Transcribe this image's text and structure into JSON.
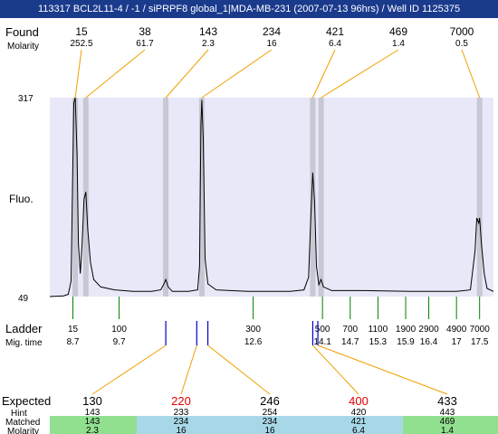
{
  "title": "113317  BCL2L11-4 / -1 / siPRPF8 global_1|MDA-MB-231 (2007-07-13 96hrs) / Well ID 1125375",
  "colors": {
    "title_bg": "#1a3a8c",
    "plot_bg": "#e8e8f8",
    "band": "#c8c8d4",
    "found_line": "#f0a000",
    "ladder_tick": "#008000",
    "expected_tick": "#0000cc",
    "miss_expected": "#dd0000",
    "matched_green": "#90e090",
    "matched_blue": "#a8d8e8"
  },
  "labels": {
    "found": "Found",
    "molarity": "Molarity",
    "fluo": "Fluo.",
    "ladder": "Ladder",
    "mig_time": "Mig. time",
    "expected": "Expected",
    "hint": "Hint",
    "matched": "Matched",
    "molarity2": "Molarity"
  },
  "chart_data": {
    "type": "line",
    "y_range": [
      49,
      317
    ],
    "y_ticks": [
      "317",
      "49"
    ],
    "x_range_migration_time": [
      8.2,
      17.8
    ],
    "found_peaks": [
      {
        "size": "15",
        "molarity": "252.5",
        "time": 8.75
      },
      {
        "size": "38",
        "molarity": "61.7",
        "time": 8.98
      },
      {
        "size": "143",
        "molarity": "2.3",
        "time": 10.71
      },
      {
        "size": "234",
        "molarity": "16",
        "time": 11.49
      },
      {
        "size": "421",
        "molarity": "6.4",
        "time": 13.89
      },
      {
        "size": "469",
        "molarity": "1.4",
        "time": 14.07
      },
      {
        "size": "7000",
        "molarity": "0.5",
        "time": 17.5
      }
    ],
    "ladder": [
      {
        "size": "15",
        "time": "8.7"
      },
      {
        "size": "100",
        "time": "9.7"
      },
      {
        "size": "300",
        "time": "12.6"
      },
      {
        "size": "500",
        "time": "14.1"
      },
      {
        "size": "700",
        "time": "14.7"
      },
      {
        "size": "1100",
        "time": "15.3"
      },
      {
        "size": "1900",
        "time": "15.9"
      },
      {
        "size": "2900",
        "time": "16.4"
      },
      {
        "size": "4900",
        "time": "17"
      },
      {
        "size": "7000",
        "time": "17.5"
      }
    ],
    "expected": [
      {
        "size": "130",
        "hint": "143",
        "matched": "143",
        "molarity": "2.3",
        "missing": false,
        "match": "green",
        "tick_times": [
          10.71
        ]
      },
      {
        "size": "220",
        "hint": "233",
        "matched": "234",
        "molarity": "16",
        "missing": true,
        "match": "blue",
        "tick_times": [
          11.38
        ]
      },
      {
        "size": "246",
        "hint": "254",
        "matched": "234",
        "molarity": "16",
        "missing": false,
        "match": "blue",
        "tick_times": [
          11.62
        ]
      },
      {
        "size": "400",
        "hint": "420",
        "matched": "421",
        "molarity": "6.4",
        "missing": true,
        "match": "blue",
        "tick_times": [
          13.89
        ]
      },
      {
        "size": "433",
        "hint": "443",
        "matched": "469",
        "molarity": "1.4",
        "missing": false,
        "match": "green",
        "tick_times": [
          14.0
        ]
      }
    ],
    "trace": [
      [
        8.2,
        49
      ],
      [
        8.5,
        50
      ],
      [
        8.6,
        52
      ],
      [
        8.66,
        70
      ],
      [
        8.72,
        310
      ],
      [
        8.75,
        317
      ],
      [
        8.79,
        240
      ],
      [
        8.82,
        120
      ],
      [
        8.86,
        80
      ],
      [
        8.9,
        120
      ],
      [
        8.94,
        180
      ],
      [
        8.98,
        190
      ],
      [
        9.02,
        140
      ],
      [
        9.08,
        95
      ],
      [
        9.15,
        72
      ],
      [
        9.3,
        62
      ],
      [
        9.6,
        58
      ],
      [
        10.0,
        56
      ],
      [
        10.4,
        56
      ],
      [
        10.6,
        58
      ],
      [
        10.66,
        65
      ],
      [
        10.71,
        72
      ],
      [
        10.76,
        62
      ],
      [
        10.85,
        56
      ],
      [
        11.2,
        56
      ],
      [
        11.4,
        58
      ],
      [
        11.44,
        90
      ],
      [
        11.47,
        280
      ],
      [
        11.49,
        314
      ],
      [
        11.52,
        260
      ],
      [
        11.56,
        100
      ],
      [
        11.62,
        66
      ],
      [
        11.8,
        58
      ],
      [
        12.5,
        56
      ],
      [
        13.4,
        56
      ],
      [
        13.7,
        58
      ],
      [
        13.8,
        75
      ],
      [
        13.85,
        160
      ],
      [
        13.89,
        216
      ],
      [
        13.93,
        175
      ],
      [
        13.97,
        90
      ],
      [
        14.02,
        65
      ],
      [
        14.07,
        72
      ],
      [
        14.12,
        62
      ],
      [
        14.3,
        57
      ],
      [
        15.0,
        57
      ],
      [
        16.0,
        56
      ],
      [
        17.0,
        56
      ],
      [
        17.3,
        58
      ],
      [
        17.4,
        110
      ],
      [
        17.44,
        155
      ],
      [
        17.48,
        148
      ],
      [
        17.5,
        155
      ],
      [
        17.54,
        120
      ],
      [
        17.6,
        80
      ],
      [
        17.66,
        60
      ],
      [
        17.8,
        56
      ]
    ]
  }
}
